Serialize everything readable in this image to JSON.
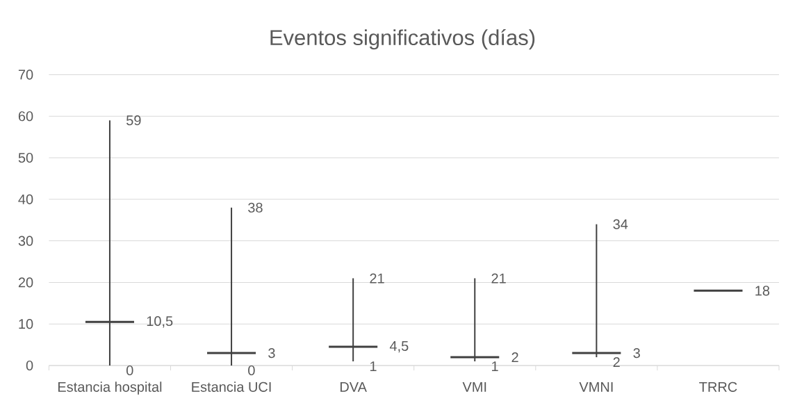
{
  "chart_data": {
    "type": "candlestick",
    "title": "Eventos significativos (días)",
    "categories": [
      "Estancia hospital",
      "Estancia UCI",
      "DVA",
      "VMI",
      "VMNI",
      "TRRC"
    ],
    "ohlc": [
      [
        10.5,
        59,
        0,
        10.5
      ],
      [
        3,
        38,
        0,
        3
      ],
      [
        4.5,
        21,
        1,
        4.5
      ],
      [
        2,
        21,
        1,
        2
      ],
      [
        3,
        34,
        2,
        3
      ],
      [
        18,
        18,
        18,
        18
      ]
    ],
    "color": "#404040",
    "ylim": [
      0,
      70
    ],
    "yticks": [
      0,
      10,
      20,
      30,
      40,
      50,
      60,
      70
    ],
    "grid": "y",
    "annotations": [
      {
        "text": "59",
        "x": "Estancia hospital",
        "y": 59
      },
      {
        "text": "10,5",
        "x": "Estancia hospital",
        "y": 10.5
      },
      {
        "text": "0",
        "x": "Estancia hospital",
        "y": 0
      },
      {
        "text": "38",
        "x": "Estancia UCI",
        "y": 38
      },
      {
        "text": "3",
        "x": "Estancia UCI",
        "y": 3
      },
      {
        "text": "0",
        "x": "Estancia UCI",
        "y": 0
      },
      {
        "text": "21",
        "x": "DVA",
        "y": 21
      },
      {
        "text": "4,5",
        "x": "DVA",
        "y": 4.5
      },
      {
        "text": "1",
        "x": "DVA",
        "y": 1
      },
      {
        "text": "21",
        "x": "VMI",
        "y": 21
      },
      {
        "text": "2",
        "x": "VMI",
        "y": 2
      },
      {
        "text": "1",
        "x": "VMI",
        "y": 1
      },
      {
        "text": "34",
        "x": "VMNI",
        "y": 34
      },
      {
        "text": "3",
        "x": "VMNI",
        "y": 3
      },
      {
        "text": "2",
        "x": "VMNI",
        "y": 2
      },
      {
        "text": "18",
        "x": "TRRC",
        "y": 18
      }
    ]
  }
}
